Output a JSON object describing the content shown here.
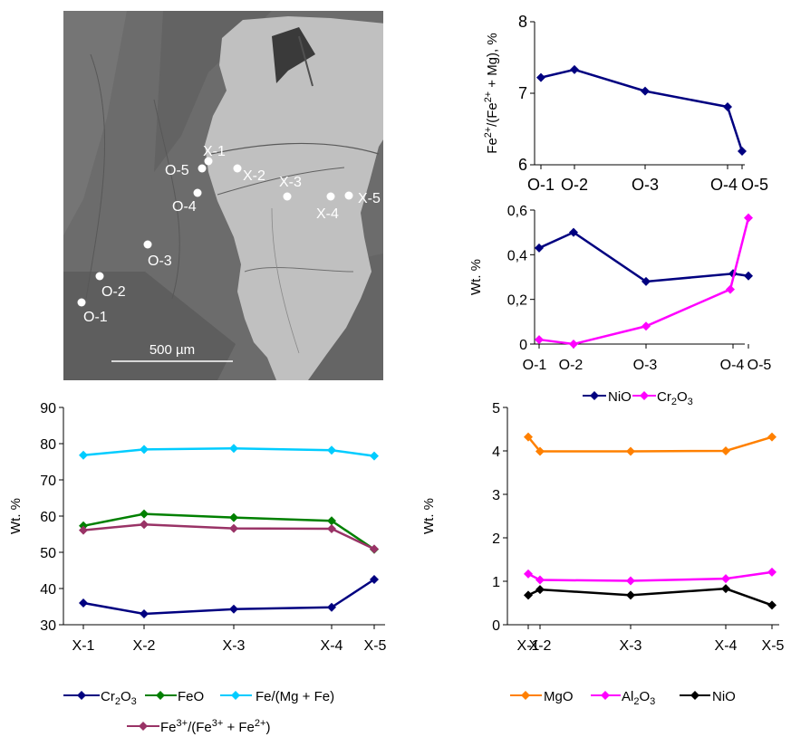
{
  "sem_image": {
    "scale_label": "500 µm",
    "points": [
      {
        "label": "O-1",
        "dot": [
          90,
          334
        ],
        "lbl": [
          92,
          355
        ]
      },
      {
        "label": "O-2",
        "dot": [
          110,
          305
        ],
        "lbl": [
          112,
          327
        ]
      },
      {
        "label": "O-3",
        "dot": [
          163,
          270
        ],
        "lbl": [
          163,
          293
        ]
      },
      {
        "label": "O-4",
        "dot": [
          218,
          213
        ],
        "lbl": [
          190,
          233
        ]
      },
      {
        "label": "O-5",
        "dot": [
          223,
          186
        ],
        "lbl": [
          182,
          193
        ]
      },
      {
        "label": "X-1",
        "dot": [
          230,
          178
        ],
        "lbl": [
          224,
          172
        ]
      },
      {
        "label": "X-2",
        "dot": [
          262,
          186
        ],
        "lbl": [
          268,
          199
        ]
      },
      {
        "label": "X-3",
        "dot": [
          317,
          217
        ],
        "lbl": [
          308,
          206
        ]
      },
      {
        "label": "X-4",
        "dot": [
          365,
          217
        ],
        "lbl": [
          349,
          241
        ]
      },
      {
        "label": "X-5",
        "dot": [
          385,
          216
        ],
        "lbl": [
          395,
          224
        ]
      }
    ]
  },
  "chart_data": [
    {
      "type": "line",
      "categories": [
        "O-1",
        "O-2",
        "O-3",
        "O-4",
        "O-5"
      ],
      "ylabel": "Fe2+/(Fe2+ + Mg), %",
      "ylim": [
        6,
        8
      ],
      "yticks": [
        "6",
        "7",
        "8"
      ],
      "series": [
        {
          "color": "#000080",
          "x": [
            "O-1",
            "O-2",
            "O-3",
            "O-4",
            "O-5"
          ],
          "values": [
            7.22,
            7.33,
            7.03,
            6.81,
            6.19
          ]
        }
      ]
    },
    {
      "type": "line",
      "categories": [
        "O-1",
        "O-2",
        "O-3",
        "O-4",
        "O-5"
      ],
      "ylabel": "Wt. %",
      "ylim": [
        0,
        0.6
      ],
      "yticks": [
        "0",
        "0,2",
        "0,4",
        "0,6"
      ],
      "series": [
        {
          "name": "NiO",
          "color": "#000080",
          "values": [
            0.43,
            0.5,
            0.28,
            0.315,
            0.305
          ]
        },
        {
          "name": "Cr2O3",
          "color": "#ff00ff",
          "values": [
            0.02,
            0.0,
            0.08,
            0.245,
            0.565
          ]
        }
      ]
    },
    {
      "type": "line",
      "categories": [
        "X-1",
        "X-2",
        "X-3",
        "X-4",
        "X-5"
      ],
      "ylabel": "Wt. %",
      "ylim": [
        30,
        90
      ],
      "yticks": [
        "30",
        "40",
        "50",
        "60",
        "70",
        "80",
        "90"
      ],
      "series": [
        {
          "name": "Cr2O3",
          "color": "#000080",
          "values": [
            36.0,
            33.0,
            34.3,
            34.8,
            42.5
          ]
        },
        {
          "name": "FeO",
          "color": "#008000",
          "values": [
            57.3,
            60.6,
            59.6,
            58.7,
            50.8
          ]
        },
        {
          "name": "Fe/(Mg + Fe)",
          "color": "#00ccff",
          "values": [
            76.8,
            78.4,
            78.7,
            78.2,
            76.6
          ]
        },
        {
          "name": "Fe3+/(Fe3+ + Fe2+)",
          "color": "#993366",
          "values": [
            56.1,
            57.7,
            56.6,
            56.5,
            50.9
          ]
        }
      ]
    },
    {
      "type": "line",
      "categories": [
        "X-1",
        "X-2",
        "X-3",
        "X-4",
        "X-5"
      ],
      "ylabel": "Wt. %",
      "ylim": [
        0,
        5
      ],
      "yticks": [
        "0",
        "1",
        "2",
        "3",
        "4",
        "5"
      ],
      "series": [
        {
          "name": "MgO",
          "color": "#ff8000",
          "values": [
            4.32,
            3.99,
            3.99,
            4.0,
            4.32
          ]
        },
        {
          "name": "Al2O3",
          "color": "#ff00ff",
          "values": [
            1.17,
            1.03,
            1.01,
            1.06,
            1.21
          ]
        },
        {
          "name": "NiO",
          "color": "#000000",
          "values": [
            0.68,
            0.81,
            0.68,
            0.83,
            0.45
          ]
        }
      ]
    }
  ],
  "legends": {
    "top_right": [
      "NiO",
      "Cr2O3"
    ],
    "bottom_left": [
      "Cr2O3",
      "FeO",
      "Fe/(Mg + Fe)",
      "Fe3+/(Fe3+ + Fe2+)"
    ],
    "bottom_right": [
      "MgO",
      "Al2O3",
      "NiO"
    ]
  }
}
